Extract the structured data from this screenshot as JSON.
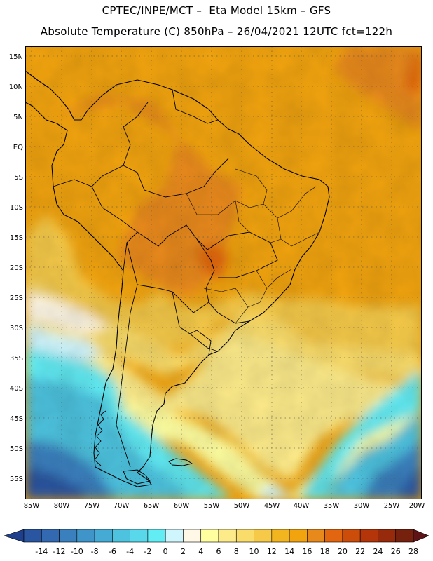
{
  "header": {
    "line1": "CPTEC/INPE/MCT –  Eta Model 15km – GFS",
    "line2": "Absolute Temperature (C) 850hPa – 26/04/2021 12UTC fct=122h"
  },
  "map": {
    "lat_labels": [
      "15N",
      "10N",
      "5N",
      "EQ",
      "5S",
      "10S",
      "15S",
      "20S",
      "25S",
      "30S",
      "35S",
      "40S",
      "45S",
      "50S",
      "55S"
    ],
    "lon_labels": [
      "85W",
      "80W",
      "75W",
      "70W",
      "65W",
      "60W",
      "55W",
      "50W",
      "45W",
      "40W",
      "35W",
      "30W",
      "25W",
      "20W"
    ],
    "extent": {
      "lon_min": -86,
      "lon_max": -20,
      "lat_min": -57.5,
      "lat_max": 17.5
    },
    "features": [
      "south-america-coastline",
      "country-borders",
      "brazil-state-borders",
      "lat-lon-grid"
    ]
  },
  "colorbar": {
    "ticks": [
      "-14",
      "-12",
      "-10",
      "-8",
      "-6",
      "-4",
      "-2",
      "0",
      "2",
      "4",
      "6",
      "8",
      "10",
      "12",
      "14",
      "16",
      "18",
      "20",
      "22",
      "24",
      "26",
      "28"
    ],
    "colors": [
      "#1f3f8c",
      "#2a55a0",
      "#3369b0",
      "#3a80bf",
      "#3f95c9",
      "#46abd4",
      "#4ec3df",
      "#58d8ea",
      "#62ecf4",
      "#cff5fd",
      "#fff8e6",
      "#ffffa0",
      "#fdeb8a",
      "#f9dc6a",
      "#f6ca48",
      "#f2b520",
      "#f2a40f",
      "#e8891c",
      "#e1660f",
      "#cc4c0a",
      "#b43509",
      "#962a0a",
      "#76200e",
      "#5e1316"
    ]
  }
}
